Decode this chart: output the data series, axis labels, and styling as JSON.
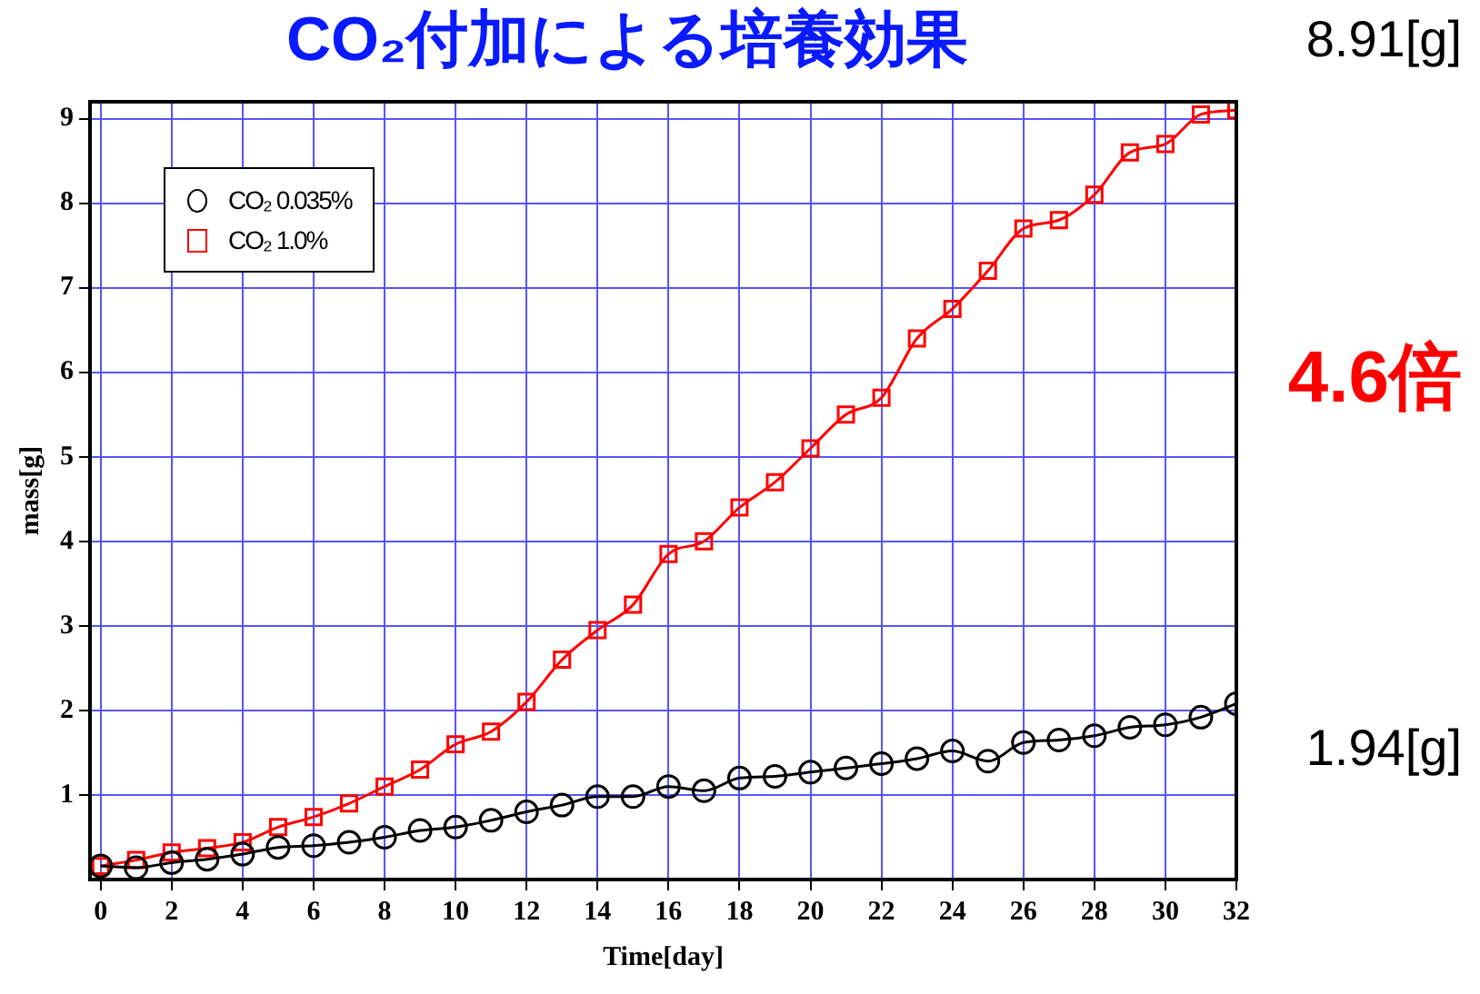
{
  "chart_data": {
    "type": "line",
    "title": "CO₂付加による培養効果",
    "xlabel": "Time[day]",
    "ylabel": "mass[g]",
    "x": [
      0,
      1,
      2,
      3,
      4,
      5,
      6,
      7,
      8,
      9,
      10,
      11,
      12,
      13,
      14,
      15,
      16,
      17,
      18,
      19,
      20,
      21,
      22,
      23,
      24,
      25,
      26,
      27,
      28,
      29,
      30,
      31,
      32
    ],
    "series": [
      {
        "name": "CO₂ 0.035%",
        "color": "#000000",
        "marker": "circle",
        "values": [
          0.16,
          0.14,
          0.2,
          0.24,
          0.3,
          0.38,
          0.4,
          0.44,
          0.5,
          0.58,
          0.62,
          0.7,
          0.8,
          0.88,
          0.98,
          0.98,
          1.1,
          1.05,
          1.2,
          1.22,
          1.27,
          1.32,
          1.37,
          1.43,
          1.52,
          1.4,
          1.62,
          1.65,
          1.7,
          1.8,
          1.83,
          1.92,
          2.08
        ]
      },
      {
        "name": "CO₂ 1.0%",
        "color": "#ff0000",
        "marker": "square",
        "values": [
          0.16,
          0.23,
          0.32,
          0.37,
          0.44,
          0.62,
          0.74,
          0.9,
          1.1,
          1.3,
          1.6,
          1.75,
          2.1,
          2.6,
          2.95,
          3.25,
          3.85,
          4.0,
          4.4,
          4.7,
          5.1,
          5.5,
          5.7,
          6.4,
          6.75,
          7.2,
          7.7,
          7.8,
          8.1,
          8.6,
          8.7,
          9.05,
          9.1
        ]
      }
    ],
    "xlim": [
      -0.3,
      32
    ],
    "xticks": [
      0,
      2,
      4,
      6,
      8,
      10,
      12,
      14,
      16,
      18,
      20,
      22,
      24,
      26,
      28,
      30,
      32
    ],
    "ylim": [
      0,
      9.2
    ],
    "yticks": [
      1,
      2,
      3,
      4,
      5,
      6,
      7,
      8,
      9
    ],
    "grid": true,
    "legend": "top left",
    "line_style": "solid",
    "annotations": [
      "8.91[g]",
      "4.6倍",
      "1.94[g]"
    ]
  }
}
